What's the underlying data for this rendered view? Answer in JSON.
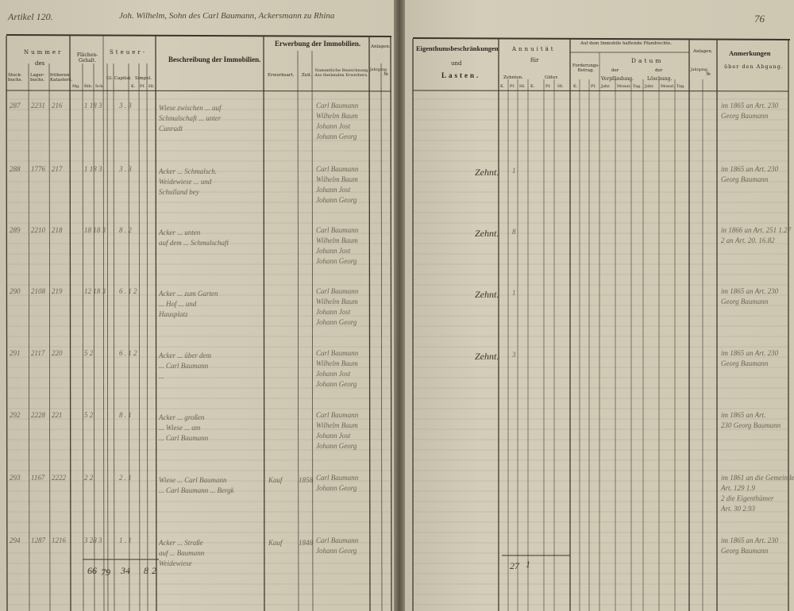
{
  "header": {
    "left_label": "Artikel 120.",
    "owner": "Joh. Wilhelm, Sohn des Carl Baumann, Ackersmann zu Rhina",
    "page_number": "76"
  },
  "left_columns": {
    "nummer": "Nummer",
    "des": "des",
    "stock": "Stock-buchs.",
    "lager": "Lager-buchs.",
    "kataster": "früheren Katasters.",
    "flaechen": "Flächen-Gehalt.",
    "flaechen_units": [
      "Mg.",
      "Rth.",
      "Sch."
    ],
    "steuer": "Steuer-",
    "capital": "Capital.",
    "gl": "Gl.",
    "simpel": "Simpel.",
    "simpel_units": [
      "K.",
      "Pf.",
      "Hl."
    ],
    "beschreibung": "Beschreibung der Immobilien.",
    "erwerbung": "Erwerbung der Immobilien.",
    "erwerbsart": "Erwerbsart.",
    "zeit": "Zeit.",
    "bezeichnung": "Namentliche Bezeichnung des theilenden Erwerbers.",
    "anlagen": "Anlagen.",
    "jahrgang": "Jahrgang.",
    "nr": "№"
  },
  "right_columns": {
    "eigenthum": "Eigenthumsbeschränkungen",
    "und": "und",
    "lasten": "Lasten.",
    "annuitaet": "Annuität",
    "fuer": "für",
    "zehnten": "Zehnten.",
    "gueter": "Güter.",
    "units3": [
      "K.",
      "Pf.",
      "Hl."
    ],
    "pfandrechte": "Auf dem Immobile haftende Pfandrechte.",
    "forderung": "Forderungs-Betrag.",
    "forderung_units": [
      "K.",
      "Pf."
    ],
    "datum": "Datum",
    "der": "der",
    "verpfaendung": "Verpfändung.",
    "loeschung": "Löschung.",
    "date_units": [
      "Jahr.",
      "Monat.",
      "Tag."
    ],
    "anlagen": "Anlagen.",
    "jahrgang": "Jahrgang.",
    "nr": "№",
    "anmerkungen": "Anmerkungen",
    "abgang": "über den Abgang."
  },
  "rows": [
    {
      "stock": "287",
      "lager": "2231",
      "kataster": "216",
      "area": "1 18 3",
      "steuer": "3  .  3",
      "desc": [
        "Wiese zwischen ... auf",
        "Schmalschaft ... unter",
        "Cunradt"
      ],
      "acq": [
        "Carl Baumann",
        "Wilhelm Baum",
        "Johann Jost",
        "Johann Georg"
      ],
      "burden": "",
      "annuity": "",
      "note": [
        "im 1865 an Art. 230",
        "Georg Baumann"
      ]
    },
    {
      "stock": "288",
      "lager": "1776",
      "kataster": "217",
      "area": "1 18 3",
      "steuer": "3  .  3",
      "desc": [
        "Acker ... Schmalsch.",
        "Weidewiese ... und",
        "Schulland bey"
      ],
      "acq": [
        "Carl Baumann",
        "Wilhelm Baum",
        "Johann Jost",
        "Johann Georg"
      ],
      "burden": "Zehnt.",
      "annuity": "1",
      "note": [
        "im 1865 an Art. 230",
        "Georg Baumann"
      ]
    },
    {
      "stock": "289",
      "lager": "2210",
      "kataster": "218",
      "area": "18 18 3",
      "steuer": "8  .  2",
      "desc": [
        "Acker ... unten",
        "auf dem ... Schmalschaft"
      ],
      "acq": [
        "Carl Baumann",
        "Wilhelm Baum",
        "Johann Jost",
        "Johann Georg"
      ],
      "burden": "Zehnt.",
      "annuity": "8",
      "note": [
        "in 1866 an Art. 251  1.27",
        "2 an Art. 20.   16.82"
      ]
    },
    {
      "stock": "290",
      "lager": "2108",
      "kataster": "219",
      "area": "12 18 3",
      "steuer": "6  .  1 2",
      "desc": [
        "Acker ... zum Garten",
        "... Hof ... und",
        "Hausplatz"
      ],
      "acq": [
        "Carl Baumann",
        "Wilhelm Baum",
        "Johann Jost",
        "Johann Georg"
      ],
      "burden": "Zehnt.",
      "annuity": "1",
      "note": [
        "im 1865 an Art. 230",
        "Georg Baumann"
      ]
    },
    {
      "stock": "291",
      "lager": "2117",
      "kataster": "220",
      "area": "5 2",
      "steuer": "6  .  1 2",
      "desc": [
        "Acker ... über dem",
        "... Carl Baumann",
        "..."
      ],
      "acq": [
        "Carl Baumann",
        "Wilhelm Baum",
        "Johann Jost",
        "Johann Georg"
      ],
      "burden": "Zehnt.",
      "annuity": "3",
      "note": [
        "im 1865 an Art. 230",
        "Georg Baumann"
      ]
    },
    {
      "stock": "292",
      "lager": "2228",
      "kataster": "221",
      "area": "5 2",
      "steuer": "8  .  1",
      "desc": [
        "Acker ... großen",
        "... Wiese ... am",
        "... Carl Baumann"
      ],
      "acq": [
        "Carl Baumann",
        "Wilhelm Baum",
        "Johann Jost",
        "Johann Georg"
      ],
      "burden": "",
      "annuity": "",
      "note": [
        "im 1865 an Art.",
        "230 Georg Baumann"
      ]
    },
    {
      "stock": "293",
      "lager": "1167",
      "kataster": "2222",
      "area": "2 2",
      "steuer": "2  .  1",
      "desc": [
        "Wiese ... Carl Baumann",
        "... Carl Baumann ... Bergk"
      ],
      "acq": [
        "Kauf",
        "1858",
        "Carl Baumann",
        "Johann Georg"
      ],
      "burden": "",
      "annuity": "",
      "note": [
        "im 1861 an die Gemeinde",
        "Art. 129    1.9",
        "2 die Eigenthümer",
        "Art. 30   2.93"
      ]
    },
    {
      "stock": "294",
      "lager": "1287",
      "kataster": "1216",
      "area": "3 28 3",
      "steuer": "1  .  1",
      "desc": [
        "Acker ... Straße",
        "auf ... Baumann",
        "Weidewiese"
      ],
      "acq": [
        "Kauf",
        "1848",
        "Carl Baumann",
        "Johann Georg"
      ],
      "burden": "",
      "annuity": "",
      "note": [
        "im 1865 an Art. 230",
        "Georg Baumann"
      ]
    }
  ],
  "totals": {
    "area_mg": "66",
    "area_rth": "79",
    "capital": "34",
    "simpel_k": "8",
    "simpel_pf": "2",
    "annuity_k": "27",
    "annuity_pf": "1"
  }
}
